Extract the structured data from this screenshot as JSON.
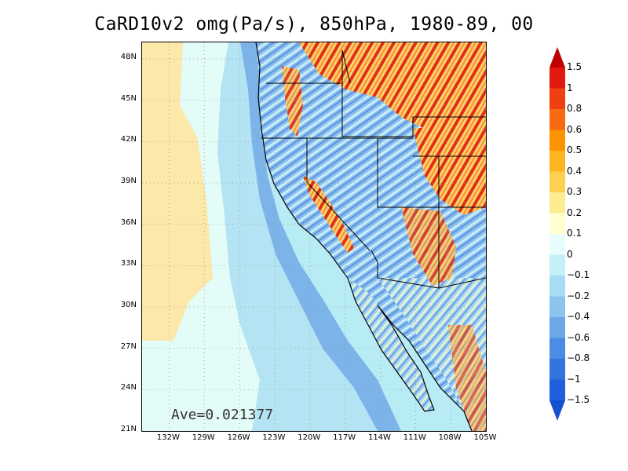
{
  "title": "CaRD10v2 omg(Pa/s), 850hPa, 1980-89, 00",
  "average_label": "Ave=0.021377",
  "lat_labels": [
    "48N",
    "45N",
    "42N",
    "39N",
    "36N",
    "33N",
    "30N",
    "27N",
    "24N",
    "21N"
  ],
  "lon_labels": [
    "132W",
    "129W",
    "126W",
    "123W",
    "120W",
    "117W",
    "114W",
    "111W",
    "108W",
    "105W"
  ],
  "colorbar": {
    "levels": [
      "1.5",
      "1",
      "0.8",
      "0.6",
      "0.5",
      "0.4",
      "0.3",
      "0.2",
      "0.1",
      "0",
      "−0.1",
      "−0.2",
      "−0.4",
      "−0.6",
      "−0.8",
      "−1",
      "−1.5"
    ],
    "colors": [
      "#c00000",
      "#e01a10",
      "#f04010",
      "#f86a10",
      "#fc9400",
      "#fcb420",
      "#fcd050",
      "#fcec90",
      "#ffffd0",
      "#e8fcfc",
      "#c4f0f8",
      "#a8dcf4",
      "#8cc4ee",
      "#6ca8e8",
      "#4c8ce4",
      "#3474e0",
      "#2060dc",
      "#1450d0"
    ]
  },
  "map": {
    "region": "Western United States",
    "lat_range": [
      21,
      49
    ],
    "lon_range": [
      -134.5,
      -105
    ],
    "colors": {
      "ocean_far": "#b8ecf4",
      "ocean_near": "#a4d8f4",
      "coastal_blue": "#6ea8e8",
      "positive_yellow": "#fce6a0",
      "pale_yellow": "#fdf0b8",
      "land_mix": "#8fc0ee",
      "ridge_red": "#d01c10",
      "ridge_orange": "#f47c20"
    }
  }
}
